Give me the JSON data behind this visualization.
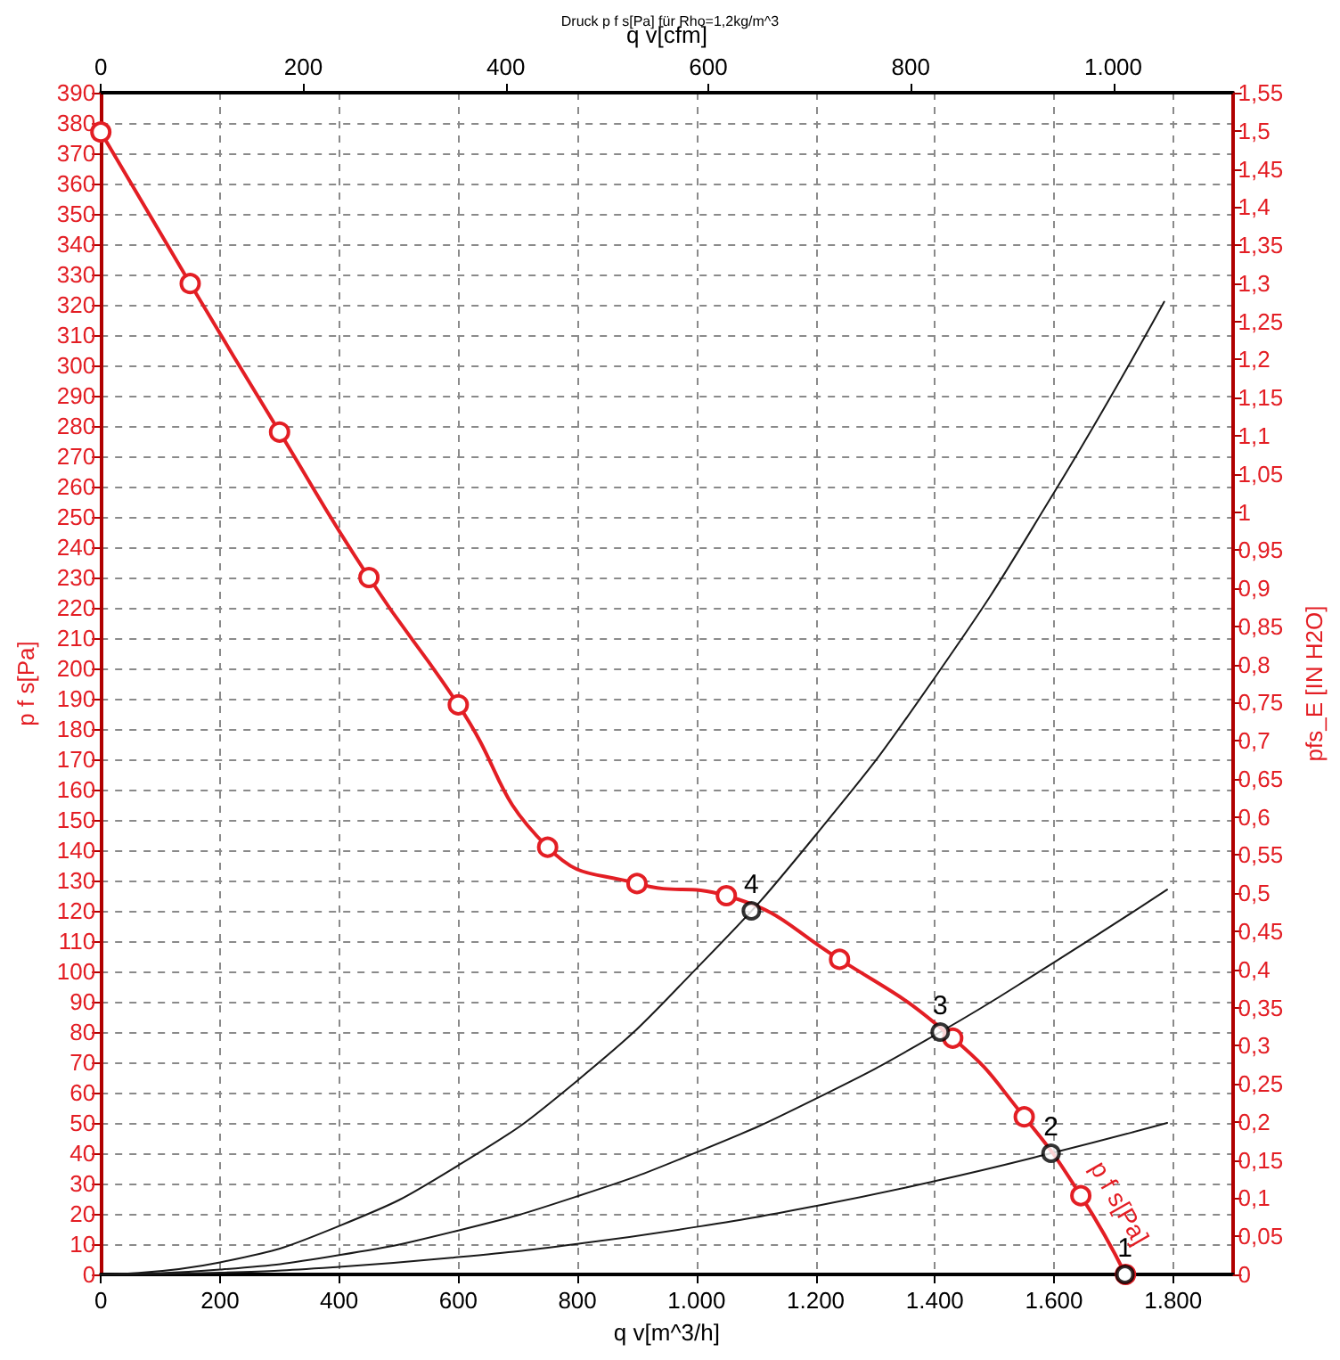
{
  "chart_data": {
    "type": "line",
    "title": "Druck p f s[Pa] für Rho=1,2kg/m^3",
    "xlabel": "q v[m^3/h]",
    "x2label": "q v[cfm]",
    "ylabel": "p f s[Pa]",
    "y2label": "pfs_E [IN H2O]",
    "xlim": [
      0,
      1900
    ],
    "xticks": [
      0,
      200,
      400,
      600,
      800,
      {
        "value": 1000,
        "label": "1.000"
      },
      {
        "value": 1200,
        "label": "1.200"
      },
      {
        "value": 1400,
        "label": "1.400"
      },
      {
        "value": 1600,
        "label": "1.600"
      },
      {
        "value": 1800,
        "label": "1.800"
      }
    ],
    "x2lim": [
      0,
      1118
    ],
    "x2ticks": [
      0,
      200,
      400,
      600,
      800,
      {
        "value": 1000,
        "label": "1.000"
      }
    ],
    "ylim": [
      0,
      390
    ],
    "yticks": [
      0,
      10,
      20,
      30,
      40,
      50,
      60,
      70,
      80,
      90,
      100,
      110,
      120,
      130,
      140,
      150,
      160,
      170,
      180,
      190,
      200,
      210,
      220,
      230,
      240,
      250,
      260,
      270,
      280,
      290,
      300,
      310,
      320,
      330,
      340,
      350,
      360,
      370,
      380,
      390
    ],
    "y2lim": [
      0,
      1.55
    ],
    "y2ticks": [
      0,
      {
        "value": 0.05,
        "label": "0,05"
      },
      {
        "value": 0.1,
        "label": "0,1"
      },
      {
        "value": 0.15,
        "label": "0,15"
      },
      {
        "value": 0.2,
        "label": "0,2"
      },
      {
        "value": 0.25,
        "label": "0,25"
      },
      {
        "value": 0.3,
        "label": "0,3"
      },
      {
        "value": 0.35,
        "label": "0,35"
      },
      {
        "value": 0.4,
        "label": "0,4"
      },
      {
        "value": 0.45,
        "label": "0,45"
      },
      {
        "value": 0.5,
        "label": "0,5"
      },
      {
        "value": 0.55,
        "label": "0,55"
      },
      {
        "value": 0.6,
        "label": "0,6"
      },
      {
        "value": 0.65,
        "label": "0,65"
      },
      {
        "value": 0.7,
        "label": "0,7"
      },
      {
        "value": 0.75,
        "label": "0,75"
      },
      {
        "value": 0.8,
        "label": "0,8"
      },
      {
        "value": 0.85,
        "label": "0,85"
      },
      {
        "value": 0.9,
        "label": "0,9"
      },
      {
        "value": 0.95,
        "label": "0,95"
      },
      1,
      {
        "value": 1.05,
        "label": "1,05"
      },
      {
        "value": 1.1,
        "label": "1,1"
      },
      {
        "value": 1.15,
        "label": "1,15"
      },
      {
        "value": 1.2,
        "label": "1,2"
      },
      {
        "value": 1.25,
        "label": "1,25"
      },
      {
        "value": 1.3,
        "label": "1,3"
      },
      {
        "value": 1.35,
        "label": "1,35"
      },
      {
        "value": 1.4,
        "label": "1,4"
      },
      {
        "value": 1.45,
        "label": "1,45"
      },
      {
        "value": 1.5,
        "label": "1,5"
      },
      {
        "value": 1.55,
        "label": "1,55"
      }
    ],
    "grid": true,
    "legend": false,
    "series": [
      {
        "name": "p f s[Pa]",
        "color": "#e31e24",
        "marker": "circle",
        "line_style": "solid",
        "x": [
          0,
          150,
          300,
          450,
          600,
          750,
          900,
          1050,
          1240,
          1430,
          1550,
          1645,
          1720
        ],
        "values": [
          377,
          327,
          278,
          230,
          188,
          141,
          129,
          125,
          104,
          78,
          52,
          26,
          0
        ]
      },
      {
        "color": "#1a1a1a",
        "marker": "none",
        "line_style": "solid",
        "x": [
          0,
          200,
          400,
          600,
          800,
          1000,
          1200,
          1400,
          1600,
          1785
        ],
        "values": [
          0,
          4,
          16,
          36,
          64,
          101,
          145,
          197,
          258,
          321
        ]
      },
      {
        "color": "#1a1a1a",
        "marker": "none",
        "line_style": "solid",
        "x": [
          0,
          200,
          400,
          600,
          800,
          1000,
          1200,
          1409,
          1600,
          1790
        ],
        "values": [
          0,
          1.6,
          6.4,
          14.5,
          25.8,
          40.3,
          58,
          80,
          103,
          127
        ]
      },
      {
        "color": "#1a1a1a",
        "marker": "none",
        "line_style": "solid",
        "x": [
          0,
          200,
          400,
          600,
          800,
          1000,
          1200,
          1400,
          1595,
          1790
        ],
        "values": [
          0,
          0.6,
          2.5,
          5.7,
          10.1,
          15.7,
          22.6,
          30.8,
          40,
          50
        ]
      },
      {
        "type": "scatter",
        "color": "#000000",
        "marker": "circle",
        "x": [
          1719,
          1595,
          1409,
          1092
        ],
        "values": [
          0,
          40,
          80,
          120
        ]
      }
    ],
    "annotations": [
      {
        "text": "1",
        "x": 1719,
        "y": 0
      },
      {
        "text": "2",
        "x": 1595,
        "y": 40
      },
      {
        "text": "3",
        "x": 1409,
        "y": 80
      },
      {
        "text": "4",
        "x": 1092,
        "y": 120
      }
    ]
  }
}
